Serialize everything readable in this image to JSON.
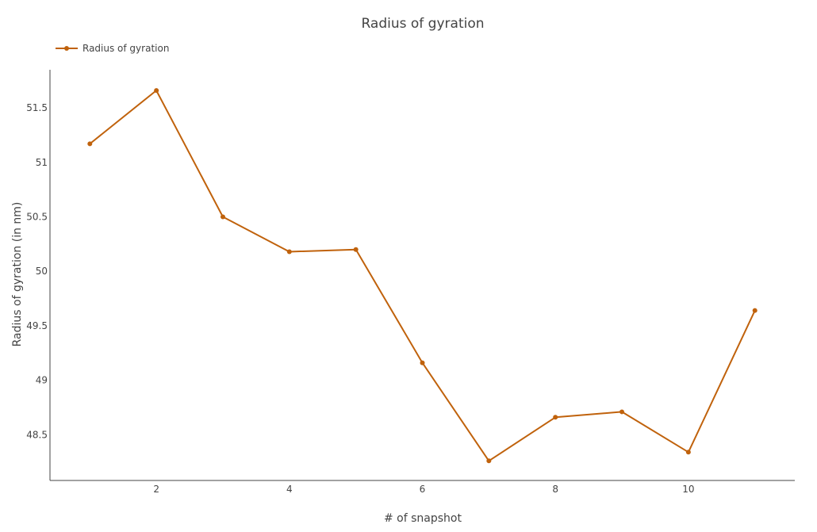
{
  "chart_data": {
    "type": "line",
    "title": "Radius of gyration",
    "xlabel": "# of snapshot",
    "ylabel": "Radius of gyration (in nm)",
    "x": [
      1,
      2,
      3,
      4,
      5,
      6,
      7,
      8,
      9,
      10,
      11
    ],
    "series": [
      {
        "name": "Radius of gyration",
        "values": [
          51.17,
          51.66,
          50.5,
          50.18,
          50.2,
          49.16,
          48.26,
          48.66,
          48.71,
          48.34,
          49.64
        ],
        "color": "#c0620c"
      }
    ],
    "xlim": [
      0.4,
      11.6
    ],
    "ylim": [
      48.08,
      51.85
    ],
    "xticks": [
      2,
      4,
      6,
      8,
      10
    ],
    "xtick_labels": [
      "2",
      "4",
      "6",
      "8",
      "10"
    ],
    "yticks": [
      48.5,
      49,
      49.5,
      50,
      50.5,
      51,
      51.5
    ],
    "ytick_labels": [
      "48.5",
      "49",
      "49.5",
      "50",
      "50.5",
      "51",
      "51.5"
    ],
    "grid": false,
    "legend_position": "top-left"
  }
}
